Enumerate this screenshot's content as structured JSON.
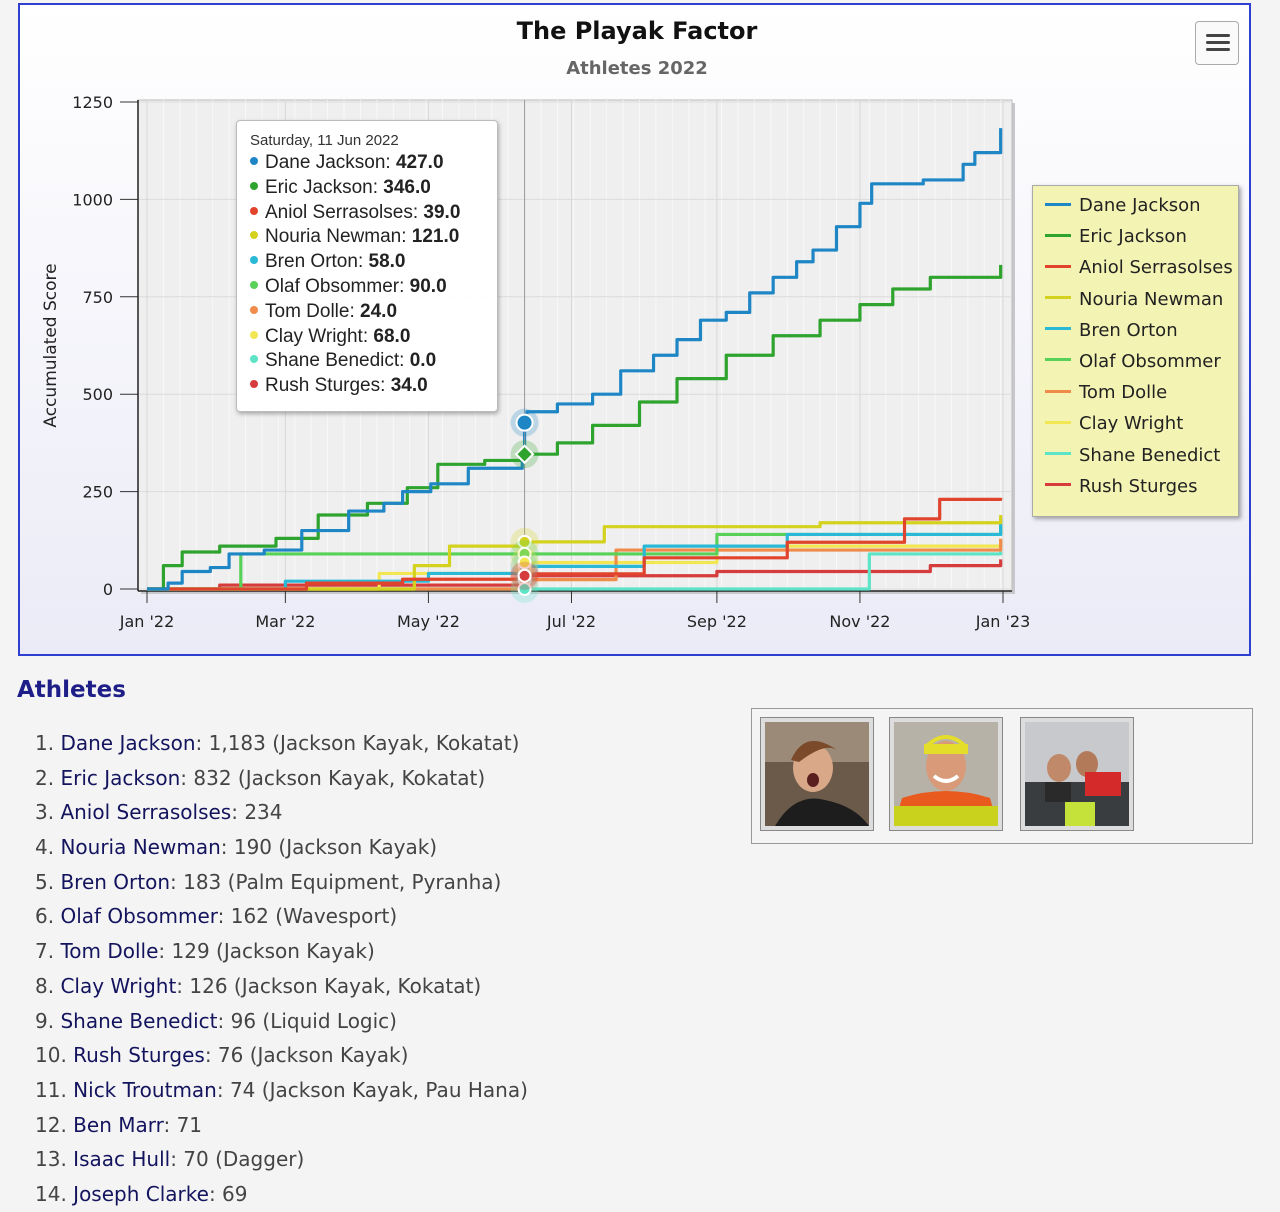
{
  "chart_data": {
    "type": "line",
    "title": "The Playak Factor",
    "subtitle": "Athletes 2022",
    "ylabel": "Accumulated Score",
    "xlabel": "",
    "x_ticks": [
      "Jan '22",
      "Mar '22",
      "May '22",
      "Jul '22",
      "Sep '22",
      "Nov '22",
      "Jan '23"
    ],
    "y_ticks": [
      "0",
      "250",
      "500",
      "750",
      "1000",
      "1250"
    ],
    "ylim": [
      0,
      1250
    ],
    "xlim": [
      "2022-01-01",
      "2023-01-01"
    ],
    "grid": true,
    "legend_position": "right",
    "series": [
      {
        "name": "Dane Jackson",
        "color": "#1f86c6",
        "points": [
          [
            "2022-01-01",
            0
          ],
          [
            "2022-01-10",
            15
          ],
          [
            "2022-01-16",
            45
          ],
          [
            "2022-01-28",
            55
          ],
          [
            "2022-02-05",
            90
          ],
          [
            "2022-02-20",
            100
          ],
          [
            "2022-03-08",
            150
          ],
          [
            "2022-03-28",
            200
          ],
          [
            "2022-04-12",
            220
          ],
          [
            "2022-04-20",
            250
          ],
          [
            "2022-05-02",
            270
          ],
          [
            "2022-05-18",
            310
          ],
          [
            "2022-06-10",
            345
          ],
          [
            "2022-06-11",
            427
          ],
          [
            "2022-06-12",
            455
          ],
          [
            "2022-06-25",
            475
          ],
          [
            "2022-07-10",
            500
          ],
          [
            "2022-07-22",
            560
          ],
          [
            "2022-08-05",
            600
          ],
          [
            "2022-08-15",
            640
          ],
          [
            "2022-08-25",
            690
          ],
          [
            "2022-09-05",
            710
          ],
          [
            "2022-09-15",
            760
          ],
          [
            "2022-09-25",
            800
          ],
          [
            "2022-10-05",
            840
          ],
          [
            "2022-10-12",
            870
          ],
          [
            "2022-10-22",
            930
          ],
          [
            "2022-11-01",
            990
          ],
          [
            "2022-11-06",
            1040
          ],
          [
            "2022-11-28",
            1050
          ],
          [
            "2022-12-15",
            1090
          ],
          [
            "2022-12-20",
            1120
          ],
          [
            "2022-12-31",
            1183
          ]
        ]
      },
      {
        "name": "Eric Jackson",
        "color": "#2ea32e",
        "points": [
          [
            "2022-01-01",
            0
          ],
          [
            "2022-01-08",
            60
          ],
          [
            "2022-01-16",
            95
          ],
          [
            "2022-02-01",
            110
          ],
          [
            "2022-02-25",
            130
          ],
          [
            "2022-03-15",
            190
          ],
          [
            "2022-04-05",
            220
          ],
          [
            "2022-04-22",
            260
          ],
          [
            "2022-05-05",
            320
          ],
          [
            "2022-05-25",
            330
          ],
          [
            "2022-06-11",
            346
          ],
          [
            "2022-06-25",
            375
          ],
          [
            "2022-07-10",
            420
          ],
          [
            "2022-07-30",
            480
          ],
          [
            "2022-08-15",
            540
          ],
          [
            "2022-09-05",
            600
          ],
          [
            "2022-09-25",
            650
          ],
          [
            "2022-10-15",
            690
          ],
          [
            "2022-11-01",
            730
          ],
          [
            "2022-11-15",
            770
          ],
          [
            "2022-12-01",
            800
          ],
          [
            "2022-12-31",
            832
          ]
        ]
      },
      {
        "name": "Aniol Serrasolses",
        "color": "#e0442c",
        "points": [
          [
            "2022-01-01",
            0
          ],
          [
            "2022-03-10",
            15
          ],
          [
            "2022-04-20",
            25
          ],
          [
            "2022-06-11",
            39
          ],
          [
            "2022-08-01",
            80
          ],
          [
            "2022-10-01",
            120
          ],
          [
            "2022-11-20",
            180
          ],
          [
            "2022-12-05",
            230
          ],
          [
            "2022-12-31",
            234
          ]
        ]
      },
      {
        "name": "Nouria Newman",
        "color": "#d4d21e",
        "points": [
          [
            "2022-01-01",
            0
          ],
          [
            "2022-04-25",
            60
          ],
          [
            "2022-05-10",
            110
          ],
          [
            "2022-06-11",
            121
          ],
          [
            "2022-07-15",
            160
          ],
          [
            "2022-10-15",
            170
          ],
          [
            "2022-12-31",
            190
          ]
        ]
      },
      {
        "name": "Bren Orton",
        "color": "#29b8d6",
        "points": [
          [
            "2022-01-01",
            0
          ],
          [
            "2022-03-01",
            20
          ],
          [
            "2022-05-01",
            40
          ],
          [
            "2022-06-11",
            58
          ],
          [
            "2022-08-01",
            110
          ],
          [
            "2022-10-01",
            140
          ],
          [
            "2022-12-31",
            183
          ]
        ]
      },
      {
        "name": "Olaf Obsommer",
        "color": "#58d158",
        "points": [
          [
            "2022-01-01",
            0
          ],
          [
            "2022-02-10",
            90
          ],
          [
            "2022-06-11",
            90
          ],
          [
            "2022-09-01",
            140
          ],
          [
            "2022-12-31",
            162
          ]
        ]
      },
      {
        "name": "Tom Dolle",
        "color": "#f08c4a",
        "points": [
          [
            "2022-01-01",
            0
          ],
          [
            "2022-06-11",
            24
          ],
          [
            "2022-07-20",
            100
          ],
          [
            "2022-12-31",
            129
          ]
        ]
      },
      {
        "name": "Clay Wright",
        "color": "#f2e653",
        "points": [
          [
            "2022-01-01",
            0
          ],
          [
            "2022-04-10",
            40
          ],
          [
            "2022-06-11",
            68
          ],
          [
            "2022-09-01",
            110
          ],
          [
            "2022-12-31",
            126
          ]
        ]
      },
      {
        "name": "Shane Benedict",
        "color": "#5de3c5",
        "points": [
          [
            "2022-01-01",
            0
          ],
          [
            "2022-06-11",
            0
          ],
          [
            "2022-11-01",
            0
          ],
          [
            "2022-11-05",
            90
          ],
          [
            "2022-12-31",
            96
          ]
        ]
      },
      {
        "name": "Rush Sturges",
        "color": "#d63c3c",
        "points": [
          [
            "2022-01-01",
            0
          ],
          [
            "2022-02-01",
            10
          ],
          [
            "2022-06-11",
            34
          ],
          [
            "2022-09-01",
            45
          ],
          [
            "2022-12-01",
            60
          ],
          [
            "2022-12-31",
            76
          ]
        ]
      }
    ],
    "tooltip": {
      "date": "Saturday, 11 Jun 2022",
      "x": "2022-06-11",
      "rows": [
        {
          "name": "Dane Jackson",
          "value": "427.0"
        },
        {
          "name": "Eric Jackson",
          "value": "346.0"
        },
        {
          "name": "Aniol Serrasolses",
          "value": "39.0"
        },
        {
          "name": "Nouria Newman",
          "value": "121.0"
        },
        {
          "name": "Bren Orton",
          "value": "58.0"
        },
        {
          "name": "Olaf Obsommer",
          "value": "90.0"
        },
        {
          "name": "Tom Dolle",
          "value": "24.0"
        },
        {
          "name": "Clay Wright",
          "value": "68.0"
        },
        {
          "name": "Shane Benedict",
          "value": "0.0"
        },
        {
          "name": "Rush Sturges",
          "value": "34.0"
        }
      ]
    }
  },
  "athletes": {
    "title": "Athletes",
    "list": [
      {
        "num": "1.",
        "name": "Dane Jackson",
        "detail": ": 1,183 (Jackson Kayak, Kokatat)"
      },
      {
        "num": "2.",
        "name": "Eric Jackson",
        "detail": ": 832 (Jackson Kayak, Kokatat)"
      },
      {
        "num": "3.",
        "name": "Aniol Serrasolses",
        "detail": ": 234"
      },
      {
        "num": "4.",
        "name": "Nouria Newman",
        "detail": ": 190 (Jackson Kayak)"
      },
      {
        "num": "5.",
        "name": "Bren Orton",
        "detail": ": 183 (Palm Equipment, Pyranha)"
      },
      {
        "num": "6.",
        "name": "Olaf Obsommer",
        "detail": ": 162 (Wavesport)"
      },
      {
        "num": "7.",
        "name": "Tom Dolle",
        "detail": ": 129 (Jackson Kayak)"
      },
      {
        "num": "8.",
        "name": "Clay Wright",
        "detail": ": 126 (Jackson Kayak, Kokatat)"
      },
      {
        "num": "9.",
        "name": "Shane Benedict",
        "detail": ": 96 (Liquid Logic)"
      },
      {
        "num": "10.",
        "name": "Rush Sturges",
        "detail": ": 76 (Jackson Kayak)"
      },
      {
        "num": "11.",
        "name": "Nick Troutman",
        "detail": ": 74 (Jackson Kayak, Pau Hana)"
      },
      {
        "num": "12.",
        "name": "Ben Marr",
        "detail": ": 71"
      },
      {
        "num": "13.",
        "name": "Isaac Hull",
        "detail": ": 70 (Dagger)"
      },
      {
        "num": "14.",
        "name": "Joseph Clarke",
        "detail": ": 69"
      }
    ]
  },
  "menu": {
    "icon": "hamburger-menu-icon"
  }
}
